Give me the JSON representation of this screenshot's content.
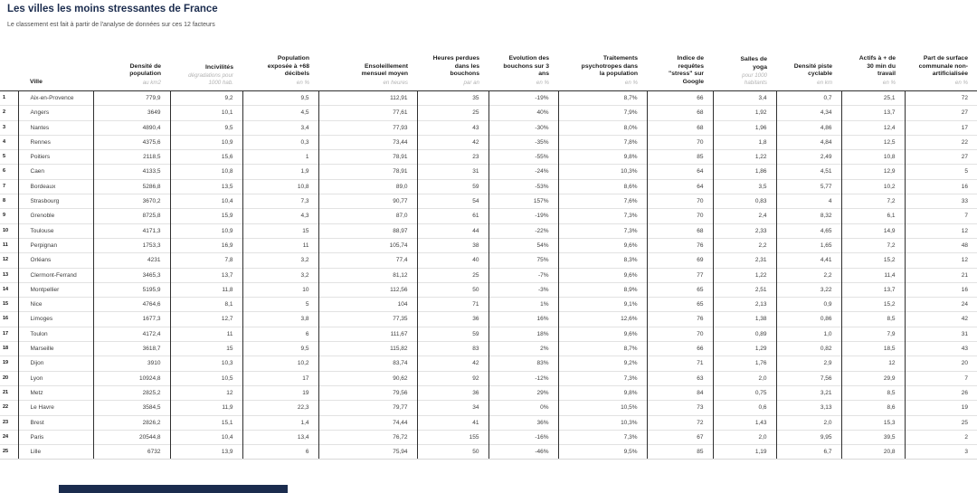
{
  "header": {
    "title": "Les villes les moins stressantes de France",
    "subtitle": "Le classement est fait à partir de l'analyse de données sur ces 12 facteurs"
  },
  "colors": {
    "accent": "#1b2c4e",
    "border_dark": "#2f2f2f",
    "border_light": "#e2e2e2",
    "unit_color": "#b3b3b3"
  },
  "chart_data": {
    "type": "table",
    "title": "Les villes les moins stressantes de France",
    "subtitle": "Le classement est fait à partir de l'analyse de données sur ces 12 facteurs"
  },
  "table": {
    "city_column": {
      "label": "Ville",
      "unit": ""
    },
    "columns": [
      {
        "label": "Densité de\npopulation",
        "unit": "au km2"
      },
      {
        "label": "Incivilités",
        "unit": "dégradations pour\n1000 hab."
      },
      {
        "label": "Population\nexposée à +68\ndécibels",
        "unit": "en %"
      },
      {
        "label": "Ensoleillement\nmensuel moyen",
        "unit": "en heures"
      },
      {
        "label": "Heures perdues\ndans les\nbouchons",
        "unit": "par an"
      },
      {
        "label": "Evolution des\nbouchons sur 3\nans",
        "unit": "en %"
      },
      {
        "label": "Traitements\npsychotropes dans\nla population",
        "unit": "en %"
      },
      {
        "label": "Indice de\nrequêtes\n\"stress\" sur\nGoogle",
        "unit": ""
      },
      {
        "label": "Salles de\nyoga",
        "unit": "pour 1000\nhabitants"
      },
      {
        "label": "Densité piste\ncyclable",
        "unit": "en km"
      },
      {
        "label": "Actifs à + de\n30 min du\ntravail",
        "unit": "en %"
      },
      {
        "label": "Part de surface\ncommunale non-\nartificialisée",
        "unit": "en %"
      }
    ],
    "rows": [
      {
        "rank": "1",
        "city": "Aix-en-Provence",
        "values": [
          "779,9",
          "9,2",
          "9,5",
          "112,91",
          "35",
          "-19%",
          "8,7%",
          "66",
          "3,4",
          "0,7",
          "25,1",
          "72"
        ]
      },
      {
        "rank": "2",
        "city": "Angers",
        "values": [
          "3649",
          "10,1",
          "4,5",
          "77,61",
          "25",
          "40%",
          "7,9%",
          "68",
          "1,92",
          "4,34",
          "13,7",
          "27"
        ]
      },
      {
        "rank": "3",
        "city": "Nantes",
        "values": [
          "4890,4",
          "9,5",
          "3,4",
          "77,93",
          "43",
          "-30%",
          "8,0%",
          "68",
          "1,96",
          "4,86",
          "12,4",
          "17"
        ]
      },
      {
        "rank": "4",
        "city": "Rennes",
        "values": [
          "4375,6",
          "10,9",
          "0,3",
          "73,44",
          "42",
          "-35%",
          "7,8%",
          "70",
          "1,8",
          "4,84",
          "12,5",
          "22"
        ]
      },
      {
        "rank": "5",
        "city": "Poitiers",
        "values": [
          "2118,5",
          "15,6",
          "1",
          "78,91",
          "23",
          "-55%",
          "9,8%",
          "85",
          "1,22",
          "2,49",
          "10,8",
          "27"
        ]
      },
      {
        "rank": "6",
        "city": "Caen",
        "values": [
          "4133,5",
          "10,8",
          "1,9",
          "78,91",
          "31",
          "-24%",
          "10,3%",
          "64",
          "1,86",
          "4,51",
          "12,9",
          "5"
        ]
      },
      {
        "rank": "7",
        "city": "Bordeaux",
        "values": [
          "5286,8",
          "13,5",
          "10,8",
          "89,0",
          "59",
          "-53%",
          "8,6%",
          "64",
          "3,5",
          "5,77",
          "10,2",
          "16"
        ]
      },
      {
        "rank": "8",
        "city": "Strasbourg",
        "values": [
          "3670,2",
          "10,4",
          "7,3",
          "90,77",
          "54",
          "157%",
          "7,6%",
          "70",
          "0,83",
          "4",
          "7,2",
          "33"
        ]
      },
      {
        "rank": "9",
        "city": "Grenoble",
        "values": [
          "8725,8",
          "15,9",
          "4,3",
          "87,0",
          "61",
          "-19%",
          "7,3%",
          "70",
          "2,4",
          "8,32",
          "6,1",
          "7"
        ]
      },
      {
        "rank": "10",
        "city": "Toulouse",
        "values": [
          "4171,3",
          "10,9",
          "15",
          "88,97",
          "44",
          "-22%",
          "7,3%",
          "68",
          "2,33",
          "4,65",
          "14,9",
          "12"
        ]
      },
      {
        "rank": "11",
        "city": "Perpignan",
        "values": [
          "1753,3",
          "16,9",
          "11",
          "105,74",
          "38",
          "54%",
          "9,6%",
          "76",
          "2,2",
          "1,65",
          "7,2",
          "48"
        ]
      },
      {
        "rank": "12",
        "city": "Orléans",
        "values": [
          "4231",
          "7,8",
          "3,2",
          "77,4",
          "40",
          "75%",
          "8,3%",
          "69",
          "2,31",
          "4,41",
          "15,2",
          "12"
        ]
      },
      {
        "rank": "13",
        "city": "Clermont-Ferrand",
        "values": [
          "3465,3",
          "13,7",
          "3,2",
          "81,12",
          "25",
          "-7%",
          "9,6%",
          "77",
          "1,22",
          "2,2",
          "11,4",
          "21"
        ]
      },
      {
        "rank": "14",
        "city": "Montpellier",
        "values": [
          "5195,9",
          "11,8",
          "10",
          "112,56",
          "50",
          "-3%",
          "8,9%",
          "65",
          "2,51",
          "3,22",
          "13,7",
          "16"
        ]
      },
      {
        "rank": "15",
        "city": "Nice",
        "values": [
          "4764,6",
          "8,1",
          "5",
          "104",
          "71",
          "1%",
          "9,1%",
          "65",
          "2,13",
          "0,9",
          "15,2",
          "24"
        ]
      },
      {
        "rank": "16",
        "city": "Limoges",
        "values": [
          "1677,3",
          "12,7",
          "3,8",
          "77,35",
          "36",
          "16%",
          "12,6%",
          "76",
          "1,38",
          "0,86",
          "8,5",
          "42"
        ]
      },
      {
        "rank": "17",
        "city": "Toulon",
        "values": [
          "4172,4",
          "11",
          "6",
          "111,67",
          "59",
          "18%",
          "9,6%",
          "70",
          "0,89",
          "1,0",
          "7,9",
          "31"
        ]
      },
      {
        "rank": "18",
        "city": "Marseille",
        "values": [
          "3618,7",
          "15",
          "9,5",
          "115,82",
          "83",
          "2%",
          "8,7%",
          "66",
          "1,29",
          "0,82",
          "18,5",
          "43"
        ]
      },
      {
        "rank": "19",
        "city": "Dijon",
        "values": [
          "3910",
          "10,3",
          "10,2",
          "83,74",
          "42",
          "83%",
          "9,2%",
          "71",
          "1,76",
          "2,9",
          "12",
          "20"
        ]
      },
      {
        "rank": "20",
        "city": "Lyon",
        "values": [
          "10924,8",
          "10,5",
          "17",
          "90,62",
          "92",
          "-12%",
          "7,3%",
          "63",
          "2,0",
          "7,56",
          "29,9",
          "7"
        ]
      },
      {
        "rank": "21",
        "city": "Metz",
        "values": [
          "2825,2",
          "12",
          "19",
          "79,56",
          "36",
          "29%",
          "9,8%",
          "84",
          "0,75",
          "3,21",
          "8,5",
          "26"
        ]
      },
      {
        "rank": "22",
        "city": "Le Havre",
        "values": [
          "3584,5",
          "11,9",
          "22,3",
          "79,77",
          "34",
          "0%",
          "10,5%",
          "73",
          "0,6",
          "3,13",
          "8,6",
          "19"
        ]
      },
      {
        "rank": "23",
        "city": "Brest",
        "values": [
          "2826,2",
          "15,1",
          "1,4",
          "74,44",
          "41",
          "36%",
          "10,3%",
          "72",
          "1,43",
          "2,0",
          "15,3",
          "25"
        ]
      },
      {
        "rank": "24",
        "city": "Paris",
        "values": [
          "20544,8",
          "10,4",
          "13,4",
          "76,72",
          "155",
          "-16%",
          "7,3%",
          "67",
          "2,0",
          "9,95",
          "39,5",
          "2"
        ]
      },
      {
        "rank": "25",
        "city": "Lille",
        "values": [
          "6732",
          "13,9",
          "6",
          "75,94",
          "50",
          "-46%",
          "9,5%",
          "85",
          "1,19",
          "6,7",
          "20,8",
          "3"
        ]
      }
    ]
  }
}
